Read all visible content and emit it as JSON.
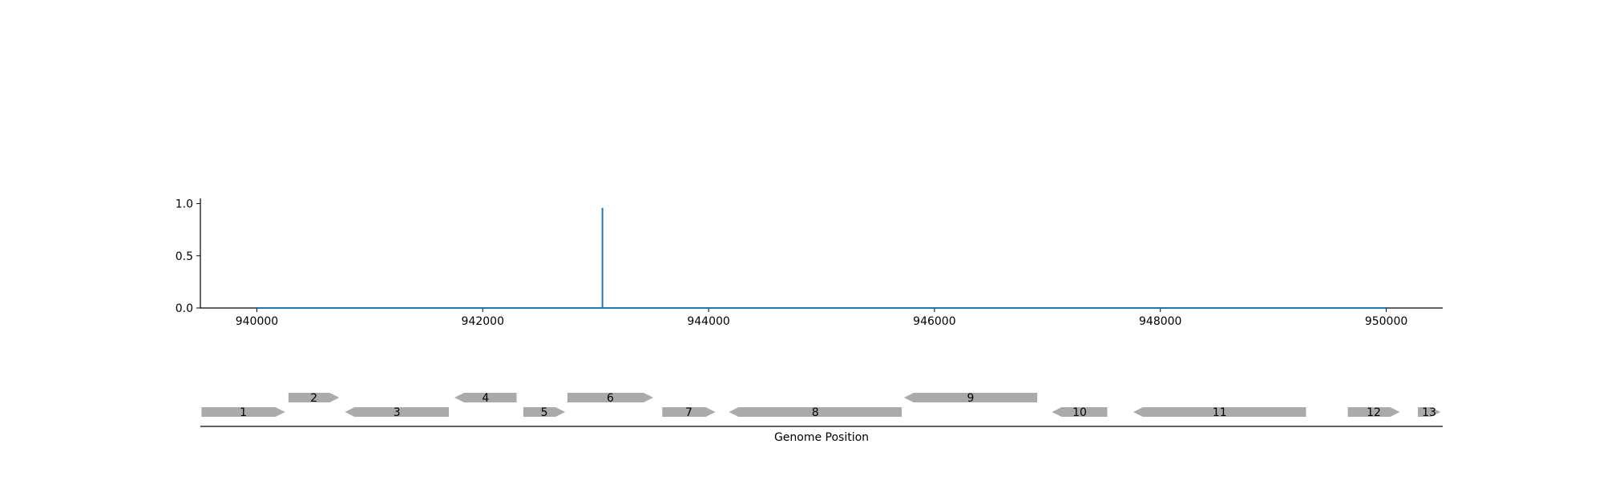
{
  "chart_data": [
    {
      "type": "line",
      "title": "",
      "xlabel": "",
      "ylabel": "",
      "xlim": [
        939500,
        950500
      ],
      "ylim": [
        0,
        1.05
      ],
      "x_ticks": [
        940000,
        942000,
        944000,
        946000,
        948000,
        950000
      ],
      "y_ticks": [
        0.0,
        0.5,
        1.0
      ],
      "grid": false,
      "series": [
        {
          "color": "#1f77b4",
          "x": [
            940000,
            943060,
            943060,
            943060,
            950000
          ],
          "y": [
            0,
            0,
            0.96,
            0,
            0
          ]
        }
      ]
    },
    {
      "type": "gene-track",
      "xlabel": "Genome Position",
      "xlim": [
        939500,
        950500
      ],
      "feature_color": "#aaaaaa",
      "genes": [
        {
          "label": "1",
          "start": 939510,
          "end": 940250,
          "strand": "+",
          "row": 0
        },
        {
          "label": "2",
          "start": 940280,
          "end": 940730,
          "strand": "+",
          "row": 1
        },
        {
          "label": "3",
          "start": 940780,
          "end": 941700,
          "strand": "-",
          "row": 0
        },
        {
          "label": "4",
          "start": 941750,
          "end": 942300,
          "strand": "-",
          "row": 1
        },
        {
          "label": "5",
          "start": 942360,
          "end": 942730,
          "strand": "+",
          "row": 0
        },
        {
          "label": "6",
          "start": 942750,
          "end": 943510,
          "strand": "+",
          "row": 1
        },
        {
          "label": "7",
          "start": 943590,
          "end": 944060,
          "strand": "+",
          "row": 0
        },
        {
          "label": "8",
          "start": 944180,
          "end": 945710,
          "strand": "-",
          "row": 0
        },
        {
          "label": "9",
          "start": 945730,
          "end": 946910,
          "strand": "-",
          "row": 1
        },
        {
          "label": "10",
          "start": 947040,
          "end": 947530,
          "strand": "-",
          "row": 0
        },
        {
          "label": "11",
          "start": 947760,
          "end": 949290,
          "strand": "-",
          "row": 0
        },
        {
          "label": "12",
          "start": 949660,
          "end": 950120,
          "strand": "+",
          "row": 0
        },
        {
          "label": "13",
          "start": 950280,
          "end": 950480,
          "strand": "+",
          "row": 0
        }
      ]
    }
  ]
}
